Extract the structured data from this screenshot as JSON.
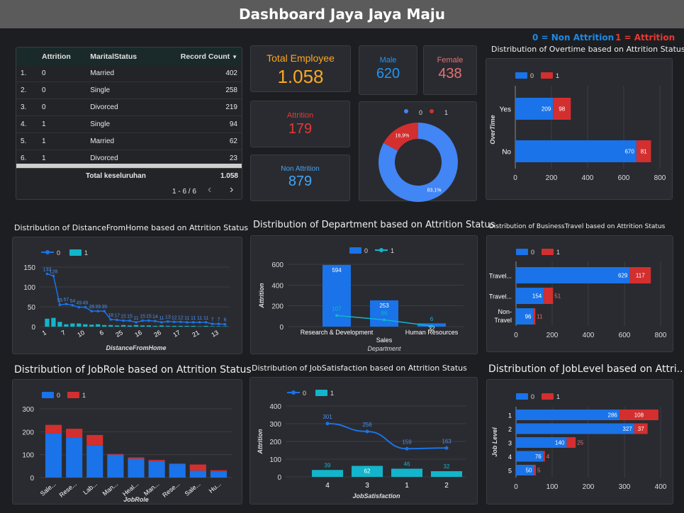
{
  "header": {
    "title": "Dashboard Jaya Jaya Maju"
  },
  "legend_top": {
    "non_attrition": "0 = Non Attrition",
    "attrition": "1 = Attrition"
  },
  "colors": {
    "blue": "#1a73e8",
    "red": "#d32f2f",
    "teal": "#12b5cb",
    "orange": "#f9a825",
    "lightblue": "#4285f4"
  },
  "table": {
    "headers": [
      "Attrition",
      "MaritalStatus",
      "Record Count"
    ],
    "sort_icon": "caret-down-icon",
    "rows": [
      {
        "idx": "1.",
        "attrition": "0",
        "marital": "Married",
        "count": "402"
      },
      {
        "idx": "2.",
        "attrition": "0",
        "marital": "Single",
        "count": "258"
      },
      {
        "idx": "3.",
        "attrition": "0",
        "marital": "Divorced",
        "count": "219"
      },
      {
        "idx": "4.",
        "attrition": "1",
        "marital": "Single",
        "count": "94"
      },
      {
        "idx": "5.",
        "attrition": "1",
        "marital": "Married",
        "count": "62"
      },
      {
        "idx": "6.",
        "attrition": "1",
        "marital": "Divorced",
        "count": "23"
      }
    ],
    "total_label": "Total keseluruhan",
    "total_value": "1.058",
    "pagination": "1 - 6 / 6"
  },
  "kpis": {
    "total": {
      "label": "Total Employee",
      "value": "1.058"
    },
    "male": {
      "label": "Male",
      "value": "620"
    },
    "female": {
      "label": "Female",
      "value": "438"
    },
    "attrition": {
      "label": "Attrition",
      "value": "179"
    },
    "non_attrition": {
      "label": "Non Attrition",
      "value": "879"
    }
  },
  "chart_data": [
    {
      "id": "donut",
      "type": "pie",
      "categories": [
        "0",
        "1"
      ],
      "values": [
        83.1,
        16.9
      ],
      "labels": [
        "83,1%",
        "16,9%"
      ]
    },
    {
      "id": "overtime",
      "type": "bar",
      "title": "Distribution of Overtime based on Attrition Status",
      "categories": [
        "Yes",
        "No"
      ],
      "series": [
        {
          "name": "0",
          "values": [
            209,
            670
          ]
        },
        {
          "name": "1",
          "values": [
            98,
            81
          ]
        }
      ],
      "ylabel": "OverTime",
      "xlim": [
        0,
        800
      ],
      "ticks": [
        "0",
        "200",
        "400",
        "600",
        "800"
      ]
    },
    {
      "id": "distance",
      "type": "bar",
      "title": "Distribution of DistanceFromHome based on Attrition Status",
      "xlabel": "DistanceFromHome",
      "categories": [
        "1",
        "2",
        "7",
        "9",
        "10",
        "3",
        "6",
        "8",
        "25",
        "16",
        "4",
        "26",
        "17",
        "28",
        "21",
        "11",
        "13",
        "5",
        "12",
        "23",
        "24",
        "29",
        "14",
        "15",
        "19",
        "18",
        "27",
        "22",
        "20"
      ],
      "tick_labels": [
        "1",
        "7",
        "10",
        "6",
        "25",
        "16",
        "26",
        "17",
        "21",
        "13"
      ],
      "series": [
        {
          "name": "0",
          "values": [
            133,
            128,
            55,
            57,
            54,
            49,
            49,
            39,
            39,
            39,
            18,
            17,
            15,
            15,
            11,
            15,
            15,
            14,
            11,
            13,
            12,
            12,
            11,
            11,
            11,
            11,
            7,
            7,
            6
          ]
        },
        {
          "name": "1",
          "values": [
            20,
            22,
            12,
            6,
            8,
            8,
            6,
            5,
            6,
            4,
            4,
            3,
            4,
            3,
            4,
            3,
            3,
            2,
            3,
            2,
            2,
            2,
            2,
            2,
            1,
            2,
            1,
            1,
            1
          ]
        }
      ],
      "line_labels": [
        "133",
        "128",
        "55",
        "57",
        "54",
        "49",
        "49",
        "39",
        "39",
        "39",
        "18",
        "17",
        "15",
        "15",
        "11",
        "15",
        "15",
        "14",
        "11",
        "13",
        "12",
        "12",
        "11",
        "11",
        "11",
        "11",
        "7",
        "7",
        "6"
      ],
      "ylim": [
        0,
        150
      ],
      "yticks": [
        "0",
        "50",
        "100",
        "150"
      ]
    },
    {
      "id": "department",
      "type": "bar",
      "title": "Distribution of Department based on Attrition Status",
      "categories": [
        "Research & Development",
        "Sales",
        "Human Resources"
      ],
      "xlabel": "Department",
      "ylabel": "Attrition",
      "series": [
        {
          "name": "0",
          "values": [
            594,
            253,
            32
          ]
        },
        {
          "name": "1",
          "values": [
            107,
            66,
            6
          ]
        }
      ],
      "ylim": [
        0,
        600
      ],
      "yticks": [
        "0",
        "200",
        "400",
        "600"
      ]
    },
    {
      "id": "travel",
      "type": "bar",
      "title": "Distribution of BusinessTravel based on Attrition Status",
      "categories": [
        "Travel...",
        "Travel...",
        "Non-Travel"
      ],
      "series": [
        {
          "name": "0",
          "values": [
            629,
            154,
            96
          ]
        },
        {
          "name": "1",
          "values": [
            117,
            51,
            11
          ]
        }
      ],
      "xlim": [
        0,
        800
      ],
      "ticks": [
        "0",
        "200",
        "400",
        "600",
        "800"
      ]
    },
    {
      "id": "jobrole",
      "type": "bar",
      "title": "Distribution of JobRole based on Attrition Status",
      "xlabel": "JobRole",
      "categories": [
        "Sale...",
        "Rese...",
        "Lab...",
        "Man...",
        "Heal...",
        "Man...",
        "Rese...",
        "Sale...",
        "Hu..."
      ],
      "series": [
        {
          "name": "0",
          "values": [
            193,
            175,
            140,
            100,
            82,
            72,
            60,
            30,
            25
          ]
        },
        {
          "name": "1",
          "values": [
            37,
            38,
            46,
            3,
            6,
            5,
            1,
            27,
            7
          ]
        }
      ],
      "ylim": [
        0,
        300
      ],
      "yticks": [
        "0",
        "100",
        "200",
        "300"
      ]
    },
    {
      "id": "jobsat",
      "type": "bar",
      "title": "Distribution of JobSatisfaction based on Attrition Status",
      "categories": [
        "4",
        "3",
        "1",
        "2"
      ],
      "xlabel": "JobSatisfaction",
      "ylabel": "Attrition",
      "series": [
        {
          "name": "0",
          "values": [
            301,
            256,
            159,
            163
          ]
        },
        {
          "name": "1",
          "values": [
            39,
            62,
            46,
            32
          ]
        }
      ],
      "ylim": [
        0,
        400
      ],
      "yticks": [
        "0",
        "100",
        "200",
        "300",
        "400"
      ]
    },
    {
      "id": "joblevel",
      "type": "bar",
      "title": "Distribution of JobLevel based on Attri...",
      "categories": [
        "1",
        "2",
        "3",
        "4",
        "5"
      ],
      "ylabel": "Job Level",
      "series": [
        {
          "name": "0",
          "values": [
            286,
            327,
            140,
            76,
            50
          ]
        },
        {
          "name": "1",
          "values": [
            108,
            37,
            25,
            4,
            5
          ]
        }
      ],
      "xlim": [
        0,
        400
      ],
      "ticks": [
        "0",
        "100",
        "200",
        "300",
        "400"
      ]
    }
  ]
}
